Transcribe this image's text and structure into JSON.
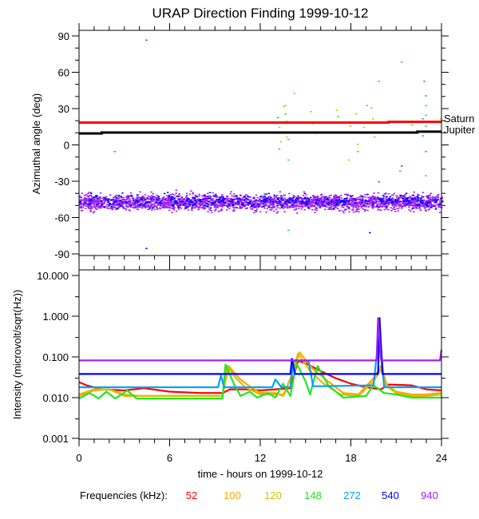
{
  "chart_data": [
    {
      "type": "scatter",
      "title": "URAP Direction Finding  1999-10-12",
      "ylabel": "Azimuthal angle (deg)",
      "xlabel": "",
      "xlim": [
        0,
        24
      ],
      "ylim": [
        -90,
        90
      ],
      "yticks": [
        "90",
        "60",
        "30",
        "0",
        "-30",
        "-60",
        "-90"
      ],
      "yticks_values": [
        90,
        60,
        30,
        0,
        -30,
        -60,
        -90
      ],
      "reference_lines": [
        {
          "name": "Saturn",
          "color": "#ff0000",
          "points": [
            [
              0,
              18.5
            ],
            [
              20.5,
              18.5
            ],
            [
              20.5,
              19
            ],
            [
              24,
              19
            ]
          ]
        },
        {
          "name": "Jupiter",
          "color": "#000000",
          "points": [
            [
              0,
              9.5
            ],
            [
              1.5,
              9.5
            ],
            [
              1.5,
              10.2
            ],
            [
              22.4,
              10.2
            ],
            [
              22.4,
              11
            ],
            [
              24,
              11
            ]
          ]
        }
      ],
      "bands": [
        {
          "frequency": "940",
          "color": "#a020f0",
          "center": -47,
          "spread": 6,
          "count": 2600
        },
        {
          "frequency": "540",
          "color": "#0000ff",
          "center": -46,
          "spread": 5,
          "count": 500
        }
      ],
      "points": [
        {
          "f": "940",
          "x": 4.4,
          "y": 87
        },
        {
          "f": "540",
          "x": 4.4,
          "y": -85
        },
        {
          "f": "272",
          "x": 2.3,
          "y": -5
        },
        {
          "f": "272",
          "x": 13.1,
          "y": 23
        },
        {
          "f": "148",
          "x": 13.2,
          "y": 19
        },
        {
          "f": "100",
          "x": 13.2,
          "y": 15
        },
        {
          "f": "120",
          "x": 13.3,
          "y": 3
        },
        {
          "f": "148",
          "x": 13.2,
          "y": -3
        },
        {
          "f": "100",
          "x": 13.5,
          "y": 32
        },
        {
          "f": "120",
          "x": 13.6,
          "y": 33
        },
        {
          "f": "148",
          "x": 13.6,
          "y": 26
        },
        {
          "f": "120",
          "x": 13.7,
          "y": 20
        },
        {
          "f": "120",
          "x": 13.7,
          "y": 7
        },
        {
          "f": "148",
          "x": 13.8,
          "y": 5
        },
        {
          "f": "148",
          "x": 13.8,
          "y": -12
        },
        {
          "f": "100",
          "x": 14.2,
          "y": 43
        },
        {
          "f": "148",
          "x": 13.8,
          "y": -70
        },
        {
          "f": "120",
          "x": 15.3,
          "y": 28
        },
        {
          "f": "120",
          "x": 15.4,
          "y": 18
        },
        {
          "f": "120",
          "x": 15.6,
          "y": 10
        },
        {
          "f": "120",
          "x": 17,
          "y": 29
        },
        {
          "f": "148",
          "x": 17.1,
          "y": 24
        },
        {
          "f": "100",
          "x": 17.8,
          "y": -12
        },
        {
          "f": "100",
          "x": 17.9,
          "y": 16
        },
        {
          "f": "100",
          "x": 18.3,
          "y": 26
        },
        {
          "f": "120",
          "x": 18.4,
          "y": 1
        },
        {
          "f": "148",
          "x": 18.4,
          "y": -5
        },
        {
          "f": "100",
          "x": 18.8,
          "y": 15
        },
        {
          "f": "148",
          "x": 19,
          "y": 33
        },
        {
          "f": "120",
          "x": 19.3,
          "y": 31
        },
        {
          "f": "120",
          "x": 19.4,
          "y": 22
        },
        {
          "f": "120",
          "x": 19.5,
          "y": 7
        },
        {
          "f": "148",
          "x": 19.8,
          "y": 53
        },
        {
          "f": "540",
          "x": 19.2,
          "y": -72
        },
        {
          "f": "940",
          "x": 19.8,
          "y": -30
        },
        {
          "f": "148",
          "x": 21.3,
          "y": 69
        },
        {
          "f": "148",
          "x": 21.2,
          "y": -21
        },
        {
          "f": "940",
          "x": 21.3,
          "y": -17
        },
        {
          "f": "272",
          "x": 22.8,
          "y": 53
        },
        {
          "f": "272",
          "x": 22.9,
          "y": 41
        },
        {
          "f": "148",
          "x": 22.9,
          "y": 33
        },
        {
          "f": "148",
          "x": 22.9,
          "y": 25
        },
        {
          "f": "272",
          "x": 22.7,
          "y": 22
        },
        {
          "f": "148",
          "x": 22.9,
          "y": 16
        },
        {
          "f": "272",
          "x": 22.7,
          "y": 8
        },
        {
          "f": "272",
          "x": 22.9,
          "y": -5
        },
        {
          "f": "148",
          "x": 22.9,
          "y": -25
        },
        {
          "f": "148",
          "x": 22.0,
          "y": 17
        },
        {
          "f": "100",
          "x": 23.9,
          "y": 22
        }
      ]
    },
    {
      "type": "line",
      "ylabel": "Intensity (microvolt/sqrt(Hz))",
      "xlabel": "time - hours on 1999-10-12",
      "xlim": [
        0,
        24
      ],
      "ylim": [
        0.001,
        10
      ],
      "yscale": "log",
      "xticks": [
        "0",
        "6",
        "12",
        "18",
        "24"
      ],
      "xticks_values": [
        0,
        6,
        12,
        18,
        24
      ],
      "yticks": [
        "10.000",
        "1.000",
        "0.100",
        "0.010",
        "0.001"
      ],
      "yticks_values": [
        10,
        1,
        0.1,
        0.01,
        0.001
      ],
      "series": [
        {
          "name": "52",
          "color": "#ff0000",
          "points": [
            [
              0,
              0.024
            ],
            [
              0.5,
              0.02
            ],
            [
              1.5,
              0.016
            ],
            [
              3,
              0.015
            ],
            [
              4.3,
              0.017
            ],
            [
              6,
              0.014
            ],
            [
              8,
              0.013
            ],
            [
              9.5,
              0.013
            ],
            [
              10,
              0.016
            ],
            [
              11,
              0.016
            ],
            [
              12,
              0.015
            ],
            [
              13,
              0.016
            ],
            [
              14,
              0.017
            ],
            [
              14.5,
              0.08
            ],
            [
              15,
              0.07
            ],
            [
              16,
              0.045
            ],
            [
              17,
              0.03
            ],
            [
              18,
              0.022
            ],
            [
              19,
              0.018
            ],
            [
              20,
              0.016
            ],
            [
              20.5,
              0.021
            ],
            [
              22,
              0.02
            ],
            [
              23,
              0.016
            ],
            [
              24,
              0.015
            ]
          ]
        },
        {
          "name": "100",
          "color": "#ffa500",
          "points": [
            [
              0,
              0.011
            ],
            [
              1,
              0.015
            ],
            [
              2,
              0.016
            ],
            [
              3,
              0.011
            ],
            [
              4,
              0.011
            ],
            [
              9.5,
              0.011
            ],
            [
              9.9,
              0.06
            ],
            [
              10.6,
              0.03
            ],
            [
              11.2,
              0.02
            ],
            [
              12,
              0.013
            ],
            [
              13,
              0.013
            ],
            [
              13.5,
              0.011
            ],
            [
              14,
              0.03
            ],
            [
              14.6,
              0.13
            ],
            [
              15.5,
              0.05
            ],
            [
              16.5,
              0.025
            ],
            [
              17.5,
              0.013
            ],
            [
              18.5,
              0.012
            ],
            [
              19.5,
              0.03
            ],
            [
              20,
              0.06
            ],
            [
              20.4,
              0.02
            ],
            [
              21,
              0.014
            ],
            [
              22,
              0.012
            ],
            [
              23,
              0.012
            ],
            [
              24,
              0.013
            ]
          ]
        },
        {
          "name": "120",
          "color": "#d2c000",
          "points": [
            [
              0,
              0.012
            ],
            [
              1,
              0.016
            ],
            [
              2,
              0.016
            ],
            [
              3,
              0.012
            ],
            [
              4,
              0.011
            ],
            [
              9.5,
              0.011
            ],
            [
              9.8,
              0.06
            ],
            [
              10.4,
              0.03
            ],
            [
              11,
              0.018
            ],
            [
              12,
              0.012
            ],
            [
              13,
              0.012
            ],
            [
              13.6,
              0.012
            ],
            [
              14,
              0.03
            ],
            [
              14.5,
              0.12
            ],
            [
              15.3,
              0.045
            ],
            [
              16.2,
              0.022
            ],
            [
              17.3,
              0.012
            ],
            [
              18.5,
              0.011
            ],
            [
              19.5,
              0.025
            ],
            [
              20,
              0.05
            ],
            [
              20.3,
              0.02
            ],
            [
              21,
              0.013
            ],
            [
              22,
              0.011
            ],
            [
              23,
              0.011
            ],
            [
              24,
              0.012
            ]
          ]
        },
        {
          "name": "148",
          "color": "#22e622",
          "points": [
            [
              0,
              0.0095
            ],
            [
              0.7,
              0.013
            ],
            [
              1.3,
              0.0095
            ],
            [
              1.8,
              0.014
            ],
            [
              2.4,
              0.0095
            ],
            [
              3.2,
              0.015
            ],
            [
              3.8,
              0.0095
            ],
            [
              9.5,
              0.0095
            ],
            [
              9.7,
              0.065
            ],
            [
              10.3,
              0.02
            ],
            [
              10.7,
              0.011
            ],
            [
              11.3,
              0.014
            ],
            [
              11.8,
              0.01
            ],
            [
              12.5,
              0.013
            ],
            [
              13,
              0.01
            ],
            [
              13.5,
              0.022
            ],
            [
              14,
              0.011
            ],
            [
              14.4,
              0.07
            ],
            [
              15,
              0.025
            ],
            [
              15.3,
              0.012
            ],
            [
              15.8,
              0.06
            ],
            [
              16.5,
              0.02
            ],
            [
              17.5,
              0.01
            ],
            [
              19,
              0.011
            ],
            [
              19.5,
              0.02
            ],
            [
              20.2,
              0.013
            ],
            [
              21,
              0.012
            ],
            [
              22,
              0.01
            ],
            [
              24,
              0.01
            ]
          ]
        },
        {
          "name": "272",
          "color": "#00a0ff",
          "points": [
            [
              0,
              0.018
            ],
            [
              9.2,
              0.018
            ],
            [
              9.4,
              0.035
            ],
            [
              9.6,
              0.018
            ],
            [
              12.8,
              0.018
            ],
            [
              13,
              0.028
            ],
            [
              13.4,
              0.018
            ],
            [
              14,
              0.018
            ],
            [
              14.2,
              0.08
            ],
            [
              15.2,
              0.08
            ],
            [
              15.5,
              0.019
            ],
            [
              19.5,
              0.02
            ],
            [
              19.9,
              0.5
            ],
            [
              20.2,
              0.018
            ],
            [
              24,
              0.018
            ]
          ]
        },
        {
          "name": "540",
          "color": "#0000ff",
          "points": [
            [
              0,
              0.038
            ],
            [
              14,
              0.038
            ],
            [
              14.1,
              0.09
            ],
            [
              14.3,
              0.038
            ],
            [
              19.8,
              0.038
            ],
            [
              19.9,
              0.9
            ],
            [
              20.1,
              0.038
            ],
            [
              24,
              0.038
            ]
          ]
        },
        {
          "name": "940",
          "color": "#a020f0",
          "points": [
            [
              0,
              0.082
            ],
            [
              19.7,
              0.082
            ],
            [
              19.8,
              0.9
            ],
            [
              20,
              0.082
            ],
            [
              23.9,
              0.082
            ],
            [
              24,
              0.15
            ]
          ]
        }
      ],
      "legend": {
        "label": "Frequencies (kHz):",
        "placement": "bottom",
        "entries": [
          "52",
          "100",
          "120",
          "148",
          "272",
          "540",
          "940"
        ]
      }
    }
  ],
  "labels": {
    "saturn": "Saturn",
    "jupiter": "Jupiter"
  }
}
